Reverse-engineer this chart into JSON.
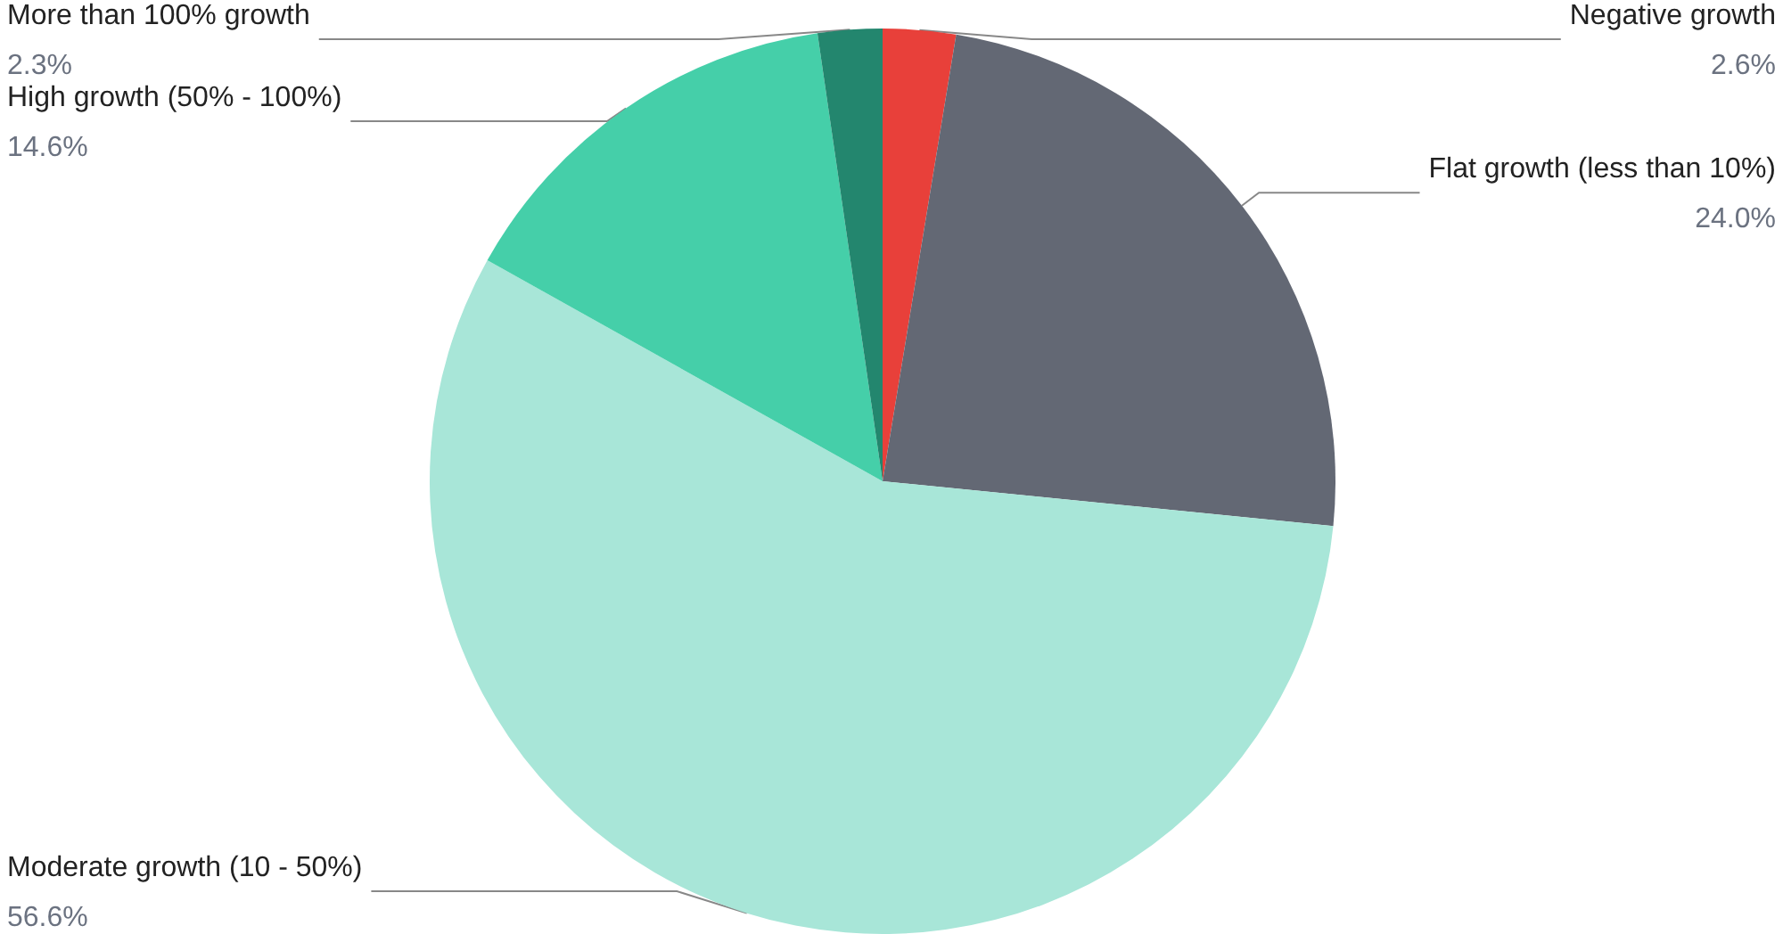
{
  "chart_data": {
    "type": "pie",
    "categories": [
      "Negative growth",
      "Flat growth (less than 10%)",
      "Moderate growth (10 - 50%)",
      "High growth (50% - 100%)",
      "More than 100% growth"
    ],
    "values": [
      2.6,
      24.0,
      56.6,
      14.6,
      2.3
    ],
    "value_labels": [
      "2.6%",
      "24.0%",
      "56.6%",
      "14.6%",
      "2.3%"
    ],
    "colors": [
      "#e8403a",
      "#636874",
      "#a8e6d8",
      "#45cfa9",
      "#23866e"
    ],
    "legend": false
  }
}
